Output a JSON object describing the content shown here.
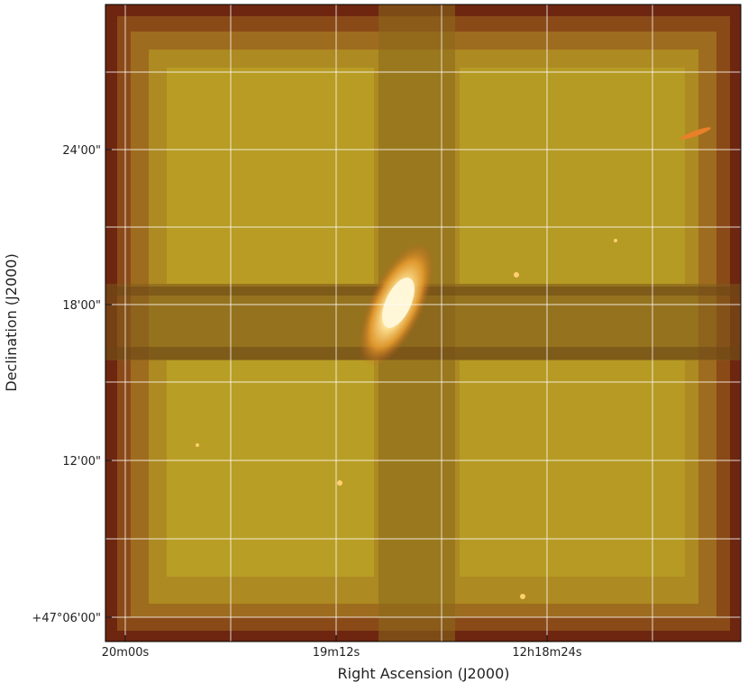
{
  "figure": {
    "xlabel": "Right Ascension (J2000)",
    "ylabel": "Declination (J2000)",
    "xtick_labels": [
      "20m00s",
      "19m12s",
      "12h18m24s"
    ],
    "ytick_labels": [
      "24'00\"",
      "18'00\"",
      "12'00\"",
      "+47°06'00\""
    ]
  }
}
